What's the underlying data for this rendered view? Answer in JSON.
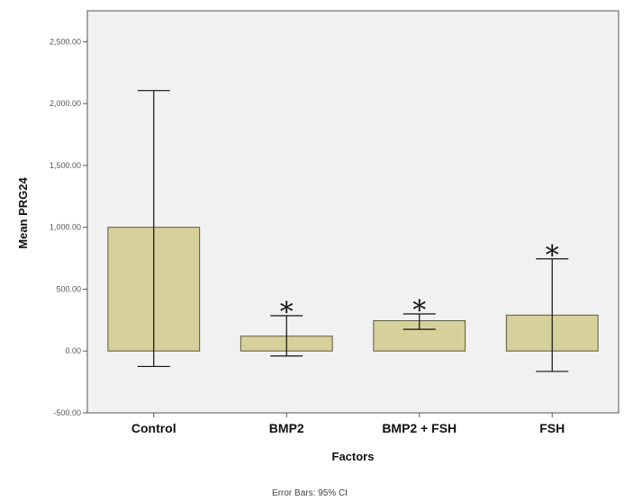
{
  "chart_data": {
    "type": "bar",
    "categories": [
      "Control",
      "BMP2",
      "BMP2 + FSH",
      "FSH"
    ],
    "values": [
      1000,
      120,
      245,
      290
    ],
    "error_bars": {
      "lower": [
        -125,
        -40,
        175,
        -165
      ],
      "upper": [
        2105,
        285,
        300,
        745
      ]
    },
    "significance_markers": [
      "",
      "*",
      "*",
      "*"
    ],
    "xlabel": "Factors",
    "ylabel": "Mean PRG24",
    "ylim": [
      -500,
      2750
    ],
    "yticks": [
      -500,
      0,
      500,
      1000,
      1500,
      2000,
      2500
    ],
    "ytick_labels": [
      "-500.00",
      "0.00",
      "500.00",
      "1,000.00",
      "1,500.00",
      "2,000.00",
      "2,500.00"
    ],
    "note": "Error Bars: 95% CI",
    "grid": false,
    "colors": {
      "bar_fill": "#d6d09a",
      "bar_stroke": "#5c5a3c",
      "plot_background": "#f1f1f1",
      "frame": "#555555"
    }
  }
}
